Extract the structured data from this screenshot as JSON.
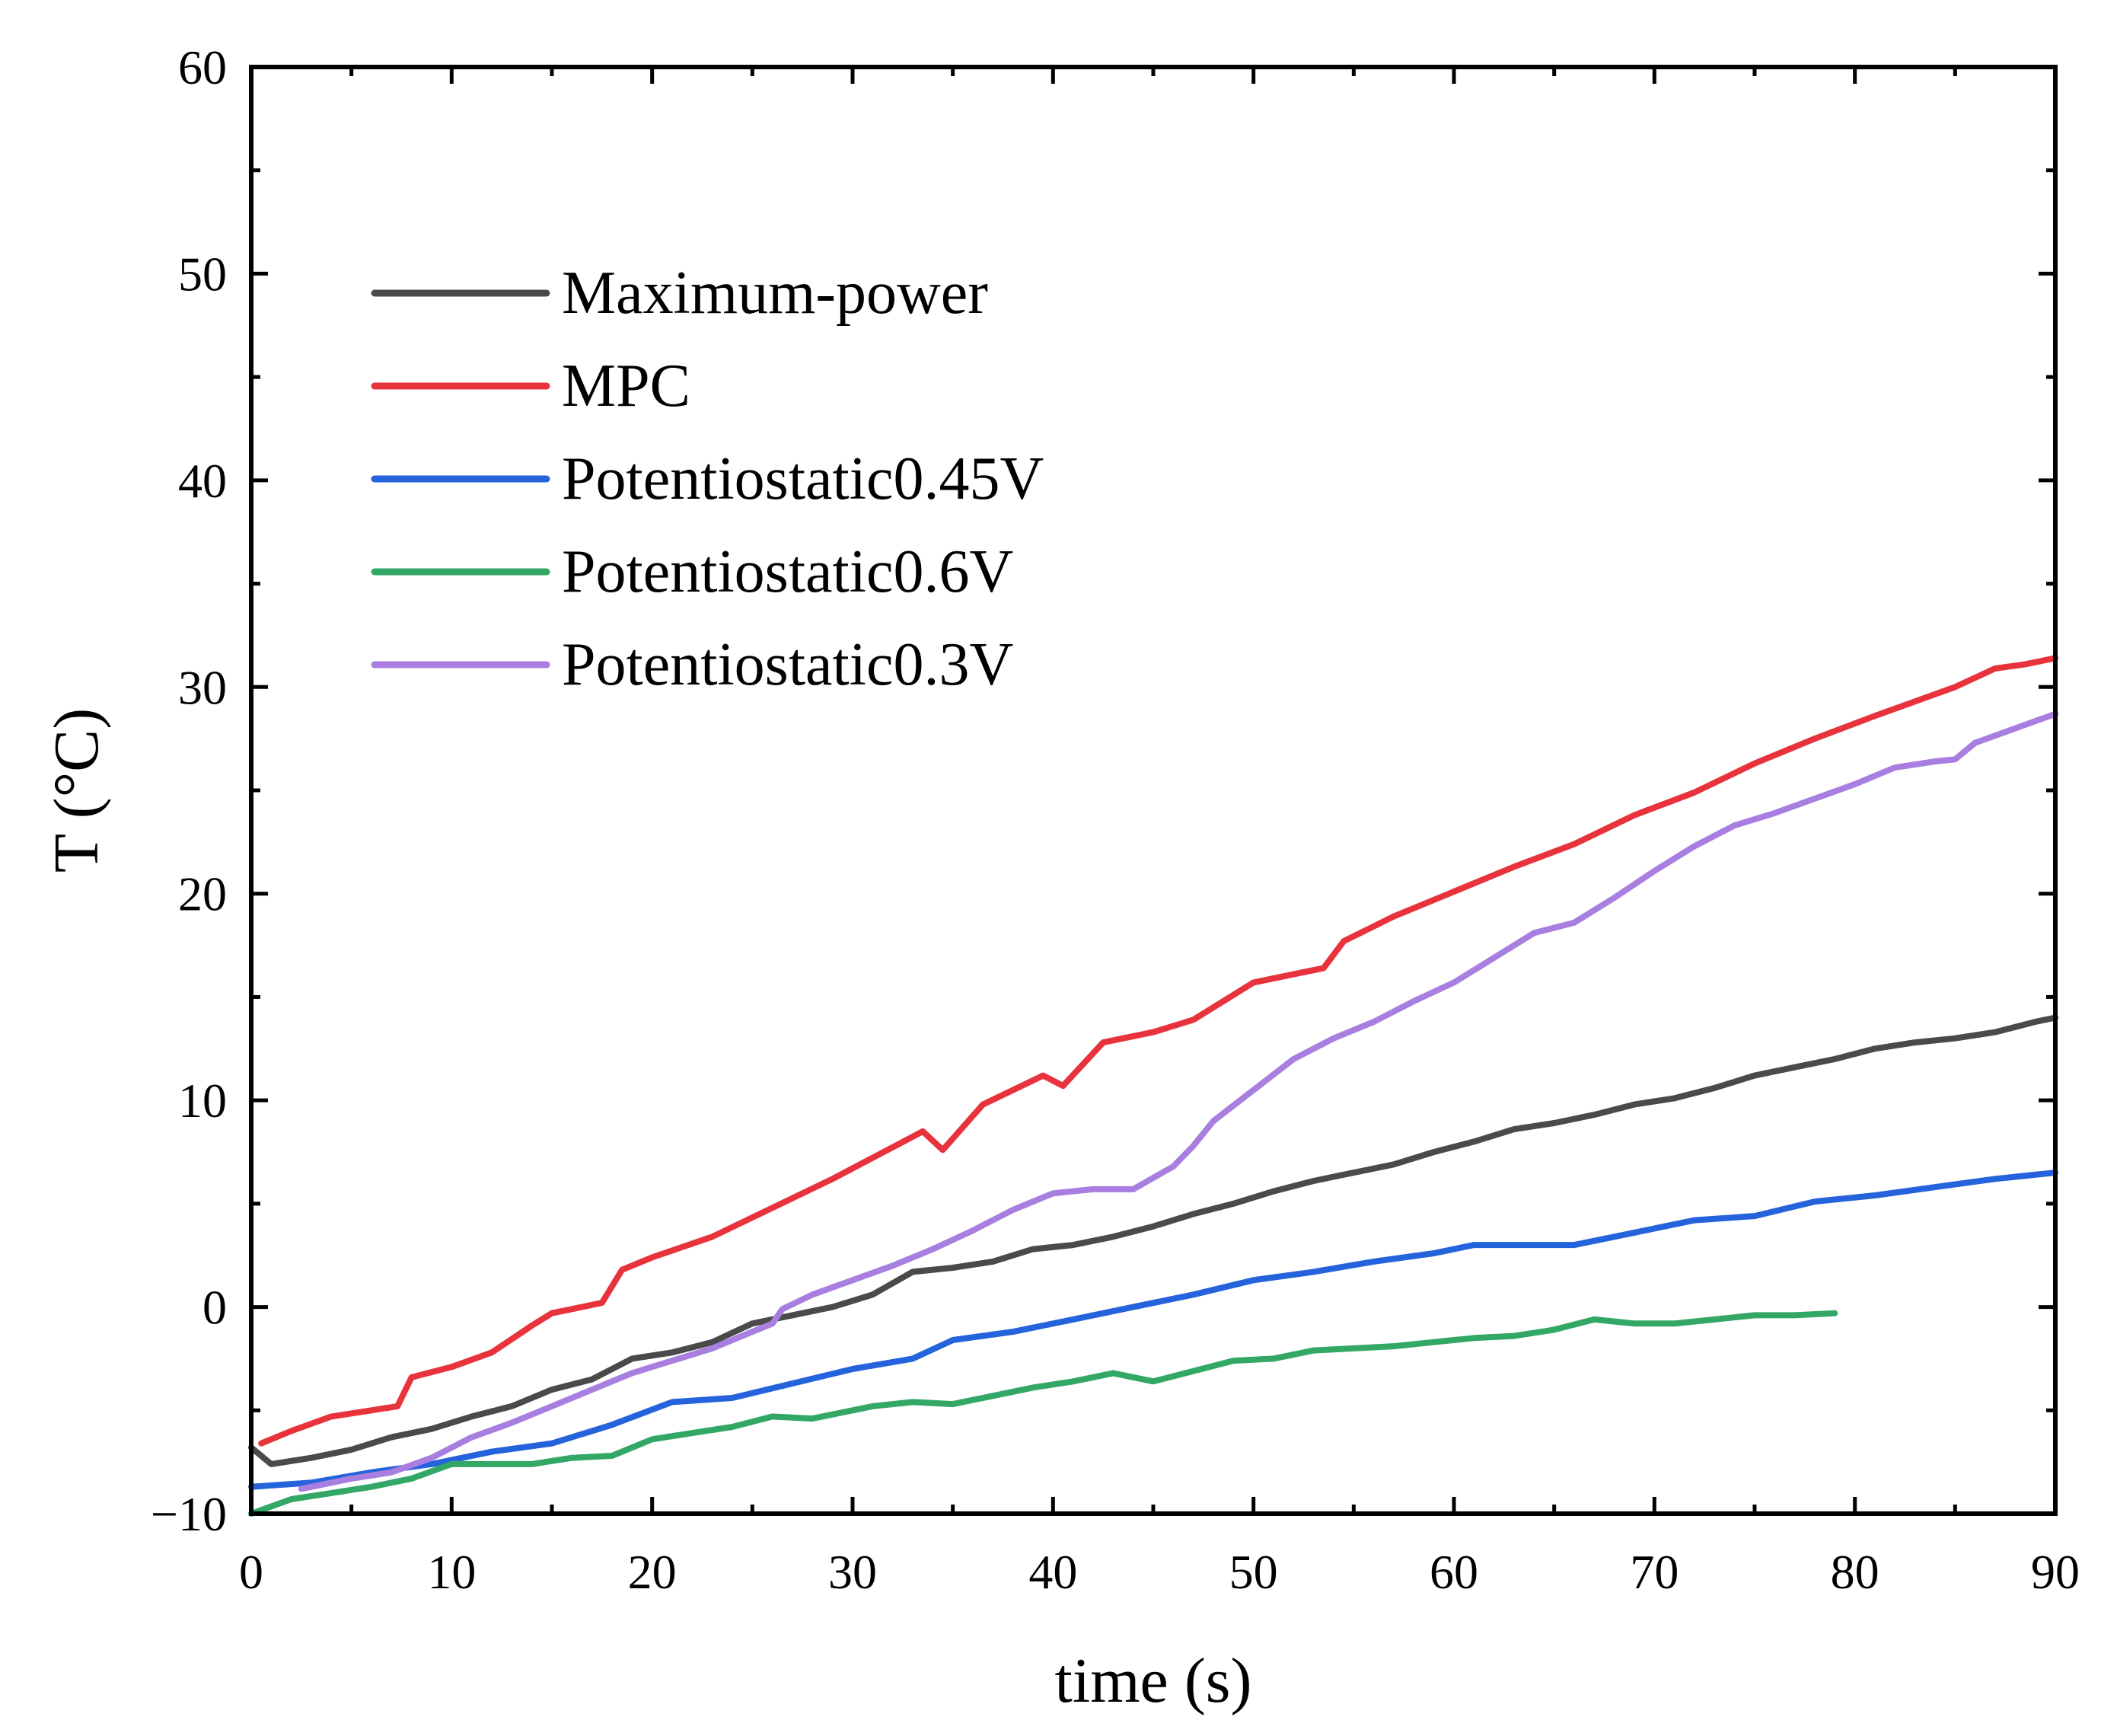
{
  "chart_data": {
    "type": "line",
    "title": "",
    "xlabel": "time (s)",
    "ylabel": "T (°C)",
    "xlim": [
      0,
      90
    ],
    "ylim": [
      -10,
      60
    ],
    "xticks": [
      0,
      10,
      20,
      30,
      40,
      50,
      60,
      70,
      80,
      90
    ],
    "yticks": [
      -10,
      0,
      10,
      20,
      30,
      40,
      50,
      60
    ],
    "xtick_labels": [
      "0",
      "10",
      "20",
      "30",
      "40",
      "50",
      "60",
      "70",
      "80",
      "90"
    ],
    "ytick_labels": [
      "−10",
      "0",
      "10",
      "20",
      "30",
      "40",
      "50",
      "60"
    ],
    "grid": false,
    "legend_position": "top-left",
    "series": [
      {
        "name": "Maximum-power",
        "color": "#4a4a4a",
        "x": [
          0,
          1,
          3,
          5,
          7,
          9,
          11,
          13,
          15,
          17,
          19,
          21,
          23,
          25,
          27,
          29,
          31,
          33,
          35,
          37,
          39,
          41,
          43,
          45,
          47,
          49,
          51,
          53,
          55,
          57,
          59,
          61,
          63,
          65,
          67,
          69,
          71,
          73,
          75,
          77,
          79,
          81,
          83,
          85,
          87,
          89,
          90
        ],
        "values": [
          -6.8,
          -7.6,
          -7.3,
          -6.9,
          -6.3,
          -5.9,
          -5.3,
          -4.8,
          -4.0,
          -3.5,
          -2.5,
          -2.2,
          -1.7,
          -0.8,
          -0.4,
          0.0,
          0.6,
          1.7,
          1.9,
          2.2,
          2.8,
          3.0,
          3.4,
          3.9,
          4.5,
          5.0,
          5.6,
          6.1,
          6.5,
          6.9,
          7.5,
          8.0,
          8.6,
          8.9,
          9.3,
          9.8,
          10.1,
          10.6,
          11.2,
          11.6,
          12.0,
          12.5,
          12.8,
          13.0,
          13.3,
          13.8,
          14.0
        ]
      },
      {
        "name": "MPC",
        "color": "#e8323c",
        "x": [
          0.5,
          2,
          4,
          6,
          7.3,
          8,
          10,
          12,
          14,
          15,
          16,
          17.5,
          18.5,
          20,
          23,
          26,
          29,
          33.5,
          34.5,
          36.5,
          39.5,
          40.5,
          42.5,
          45,
          47,
          50,
          53.5,
          54.5,
          57,
          60,
          63,
          66,
          69,
          72,
          75,
          78,
          81,
          85,
          87,
          88.5,
          90
        ],
        "values": [
          -6.6,
          -6.0,
          -5.3,
          -5.0,
          -4.8,
          -3.4,
          -2.9,
          -2.2,
          -0.9,
          -0.3,
          -0.1,
          0.2,
          1.8,
          2.4,
          3.4,
          4.8,
          6.2,
          8.5,
          7.6,
          9.8,
          11.2,
          10.7,
          12.8,
          13.3,
          13.9,
          15.7,
          16.4,
          17.7,
          18.9,
          20.1,
          21.3,
          22.4,
          23.8,
          24.9,
          26.3,
          27.5,
          28.6,
          30.0,
          30.9,
          31.1,
          31.4
        ]
      },
      {
        "name": "Potentiostatic0.45V",
        "color": "#2563dd",
        "x": [
          0,
          3,
          6,
          9,
          12,
          15,
          18,
          21,
          24,
          27,
          30,
          33,
          35,
          38,
          41,
          44,
          47,
          50,
          53,
          56,
          59,
          61,
          63,
          66,
          69,
          72,
          75,
          78,
          81,
          84,
          87,
          90
        ],
        "values": [
          -8.7,
          -8.5,
          -8.0,
          -7.6,
          -7.0,
          -6.6,
          -5.7,
          -4.6,
          -4.4,
          -3.7,
          -3.0,
          -2.5,
          -1.6,
          -1.2,
          -0.6,
          0.0,
          0.6,
          1.3,
          1.7,
          2.2,
          2.6,
          3.0,
          3.0,
          3.0,
          3.6,
          4.2,
          4.4,
          5.1,
          5.4,
          5.8,
          6.2,
          6.5
        ]
      },
      {
        "name": "Potentiostatic0.6V",
        "color": "#33a866",
        "x": [
          0,
          2,
          4,
          6,
          8,
          10,
          12,
          14,
          16,
          18,
          20,
          22,
          24,
          26,
          28,
          30,
          31,
          33,
          35,
          37,
          39,
          41,
          43,
          45,
          47,
          49,
          51,
          53,
          55,
          57,
          59,
          61,
          63,
          65,
          67,
          69,
          71,
          73,
          75,
          77,
          79
        ],
        "values": [
          -10.0,
          -9.3,
          -9.0,
          -8.7,
          -8.3,
          -7.6,
          -7.6,
          -7.6,
          -7.3,
          -7.2,
          -6.4,
          -6.1,
          -5.8,
          -5.3,
          -5.4,
          -5.0,
          -4.8,
          -4.6,
          -4.7,
          -4.3,
          -3.9,
          -3.6,
          -3.2,
          -3.6,
          -3.1,
          -2.6,
          -2.5,
          -2.1,
          -2.0,
          -1.9,
          -1.7,
          -1.5,
          -1.4,
          -1.1,
          -0.6,
          -0.8,
          -0.8,
          -0.6,
          -0.4,
          -0.4,
          -0.3
        ]
      },
      {
        "name": "Potentiostatic0.3V",
        "color": "#a87fe0",
        "x": [
          2.5,
          5,
          7,
          9,
          11,
          13,
          15,
          17,
          19,
          21,
          23,
          25,
          26,
          26.5,
          28,
          30,
          32,
          34,
          36,
          38,
          40,
          42,
          44,
          46,
          47,
          48,
          50,
          52,
          54,
          56,
          58,
          60,
          62,
          64,
          66,
          68,
          70,
          72,
          74,
          76,
          78,
          80,
          82,
          84,
          85,
          86,
          88,
          90
        ],
        "values": [
          -8.8,
          -8.3,
          -8.0,
          -7.3,
          -6.3,
          -5.6,
          -4.8,
          -4.0,
          -3.2,
          -2.6,
          -2.0,
          -1.2,
          -0.8,
          -0.1,
          0.6,
          1.3,
          2.0,
          2.8,
          3.7,
          4.7,
          5.5,
          5.7,
          5.7,
          6.8,
          7.8,
          9.0,
          10.5,
          12.0,
          13.0,
          13.8,
          14.8,
          15.7,
          16.9,
          18.1,
          18.6,
          19.8,
          21.1,
          22.3,
          23.3,
          23.9,
          24.6,
          25.3,
          26.1,
          26.4,
          26.5,
          27.3,
          28.0,
          28.7
        ]
      }
    ]
  }
}
